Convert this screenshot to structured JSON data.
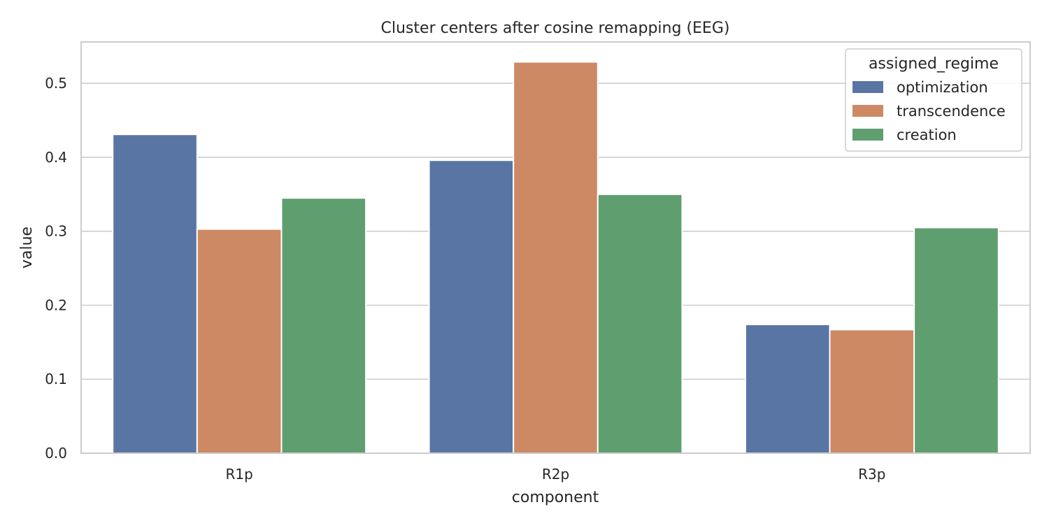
{
  "chart_data": {
    "type": "bar",
    "title": "Cluster centers after cosine remapping (EEG)",
    "xlabel": "component",
    "ylabel": "value",
    "categories": [
      "R1p",
      "R2p",
      "R3p"
    ],
    "ylim": [
      0,
      0.556
    ],
    "yticks": [
      0.0,
      0.1,
      0.2,
      0.3,
      0.4,
      0.5
    ],
    "ytick_labels": [
      "0.0",
      "0.1",
      "0.2",
      "0.3",
      "0.4",
      "0.5"
    ],
    "grid": "horizontal",
    "legend": {
      "title": "assigned_regime",
      "placement": "top-right"
    },
    "series": [
      {
        "name": "optimization",
        "color": "#5975a4",
        "values": [
          0.431,
          0.396,
          0.174
        ]
      },
      {
        "name": "transcendence",
        "color": "#cc8963",
        "values": [
          0.303,
          0.529,
          0.167
        ]
      },
      {
        "name": "creation",
        "color": "#5f9e6e",
        "values": [
          0.345,
          0.35,
          0.305
        ]
      }
    ]
  }
}
